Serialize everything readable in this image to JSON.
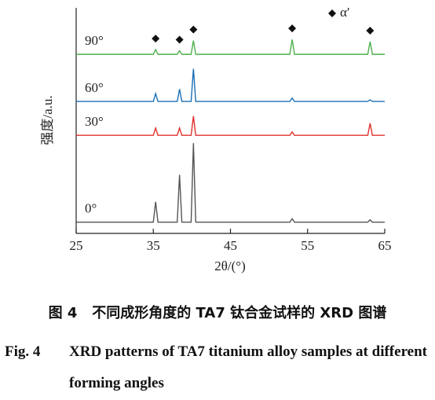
{
  "chart_data": {
    "type": "line",
    "x_label": "2θ/(°)",
    "y_label": "强度/a.u.",
    "x": [
      25,
      35.0,
      35.3,
      35.6,
      38.1,
      38.4,
      38.7,
      39.9,
      40.2,
      40.5,
      52.7,
      53.0,
      53.3,
      62.8,
      63.1,
      63.4,
      65
    ],
    "series": [
      {
        "name": "0°",
        "color": "#555555",
        "values": [
          5,
          5,
          14,
          5,
          5,
          26,
          5,
          5,
          40,
          5,
          5,
          6.5,
          5,
          5,
          6,
          5,
          5
        ]
      },
      {
        "name": "30°",
        "color": "#e0302e",
        "values": [
          43.5,
          43.5,
          46.7,
          43.5,
          43.5,
          46.7,
          43.5,
          43.5,
          52,
          43.5,
          43.5,
          45,
          43.5,
          43.5,
          48.8,
          43.5,
          43.5
        ]
      },
      {
        "name": "60°",
        "color": "#1a6fb5",
        "values": [
          58.5,
          58.5,
          62,
          58.5,
          58.5,
          64,
          58.5,
          58.5,
          73,
          58.5,
          58.5,
          60,
          58.5,
          58.5,
          59.2,
          58.5,
          58.5
        ]
      },
      {
        "name": "90°",
        "color": "#4cb04c",
        "values": [
          79.4,
          79.4,
          81.5,
          79.4,
          79.4,
          81,
          79.4,
          79.4,
          85.5,
          79.4,
          79.4,
          86,
          79.4,
          79.4,
          85,
          79.4,
          79.4
        ]
      }
    ],
    "peak_markers": {
      "name": "α′",
      "x": [
        35.3,
        38.4,
        40.2,
        53.0,
        63.1
      ]
    },
    "xlim": [
      25,
      65
    ],
    "xticks": [
      25,
      35,
      45,
      55,
      65
    ],
    "ylim": [
      0,
      100
    ]
  },
  "caption": {
    "zh_label": "图 4",
    "zh_text": "不同成形角度的 TA7 钛合金试样的 XRD 图谱",
    "en_label": "Fig. 4",
    "en_text": "XRD patterns of TA7 titanium alloy samples at different forming angles"
  }
}
